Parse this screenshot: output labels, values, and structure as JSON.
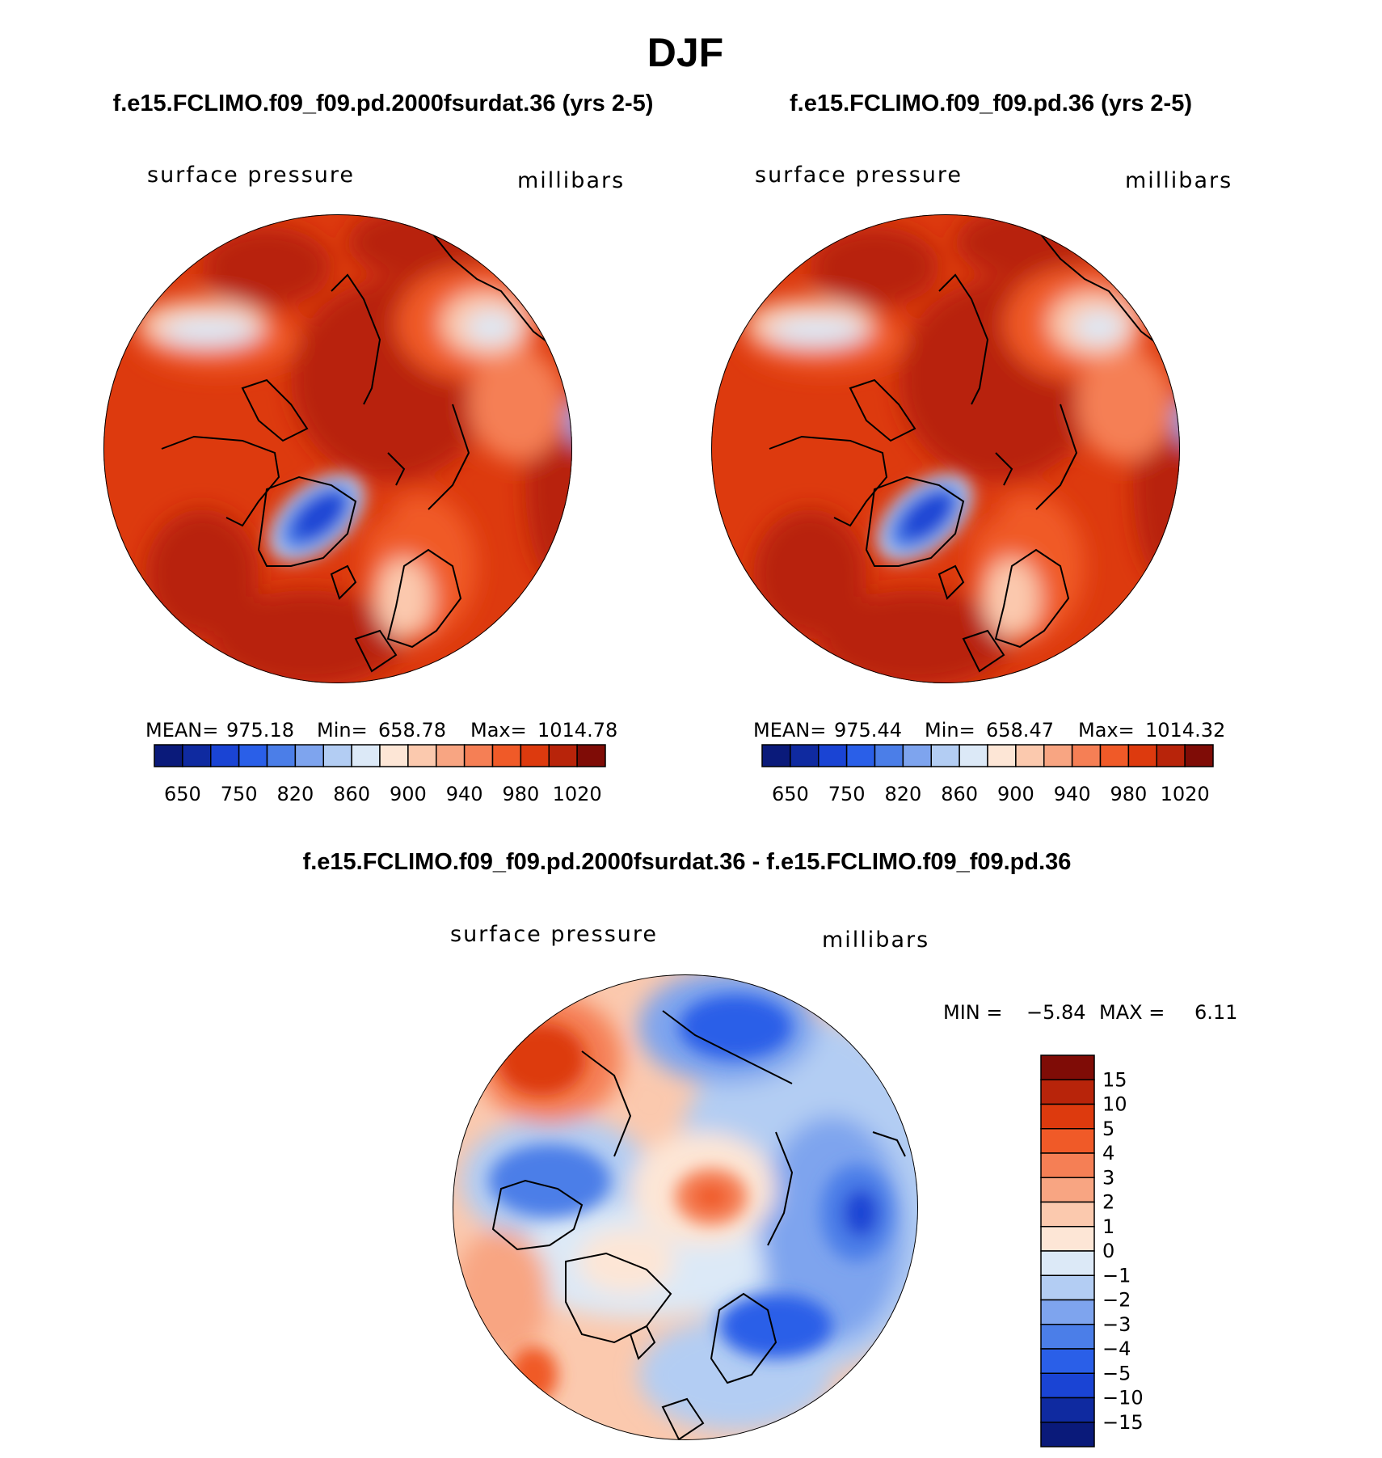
{
  "figure_title": "DJF",
  "chart_data": [
    {
      "type": "heatmap",
      "projection": "north polar stereographic",
      "title": "f.e15.FCLIMO.f09_f09.pd.2000fsurdat.36 (yrs 2-5)",
      "variable": "surface pressure",
      "units": "millibars",
      "stats": {
        "mean_label": "MEAN=",
        "mean": "975.18",
        "min_label": "Min=",
        "min": "658.78",
        "max_label": "Max=",
        "max": "1014.78"
      },
      "colorbar_ticks": [
        "650",
        "750",
        "820",
        "860",
        "900",
        "940",
        "980",
        "1020"
      ],
      "colorbar_colors": [
        "#0a1a7a",
        "#0f2aa0",
        "#1a44d4",
        "#2a5fe8",
        "#4b7ee8",
        "#7ea4ee",
        "#b3cdf3",
        "#dce9f7",
        "#fde6d6",
        "#fbc9ae",
        "#f8a582",
        "#f57f55",
        "#f05a28",
        "#dd3a0e",
        "#b8240a",
        "#7f0c06"
      ]
    },
    {
      "type": "heatmap",
      "projection": "north polar stereographic",
      "title": "f.e15.FCLIMO.f09_f09.pd.36 (yrs 2-5)",
      "variable": "surface pressure",
      "units": "millibars",
      "stats": {
        "mean_label": "MEAN=",
        "mean": "975.44",
        "min_label": "Min=",
        "min": "658.47",
        "max_label": "Max=",
        "max": "1014.32"
      },
      "colorbar_ticks": [
        "650",
        "750",
        "820",
        "860",
        "900",
        "940",
        "980",
        "1020"
      ],
      "colorbar_colors": [
        "#0a1a7a",
        "#0f2aa0",
        "#1a44d4",
        "#2a5fe8",
        "#4b7ee8",
        "#7ea4ee",
        "#b3cdf3",
        "#dce9f7",
        "#fde6d6",
        "#fbc9ae",
        "#f8a582",
        "#f57f55",
        "#f05a28",
        "#dd3a0e",
        "#b8240a",
        "#7f0c06"
      ]
    },
    {
      "type": "heatmap",
      "projection": "north polar stereographic",
      "title": "f.e15.FCLIMO.f09_f09.pd.2000fsurdat.36 - f.e15.FCLIMO.f09_f09.pd.36",
      "variable": "surface pressure",
      "units": "millibars",
      "stats": {
        "min_label": "MIN =",
        "min": "−5.84",
        "max_label": "MAX =",
        "max": "6.11"
      },
      "colorbar_ticks": [
        "15",
        "10",
        "5",
        "4",
        "3",
        "2",
        "1",
        "0",
        "−1",
        "−2",
        "−3",
        "−4",
        "−5",
        "−10",
        "−15"
      ],
      "colorbar_colors": [
        "#7f0c06",
        "#b8240a",
        "#dd3a0e",
        "#f05a28",
        "#f57f55",
        "#f8a582",
        "#fbc9ae",
        "#fde6d6",
        "#dce9f7",
        "#b3cdf3",
        "#7ea4ee",
        "#4b7ee8",
        "#2a5fe8",
        "#1a44d4",
        "#0f2aa0",
        "#0a1a7a"
      ]
    }
  ]
}
